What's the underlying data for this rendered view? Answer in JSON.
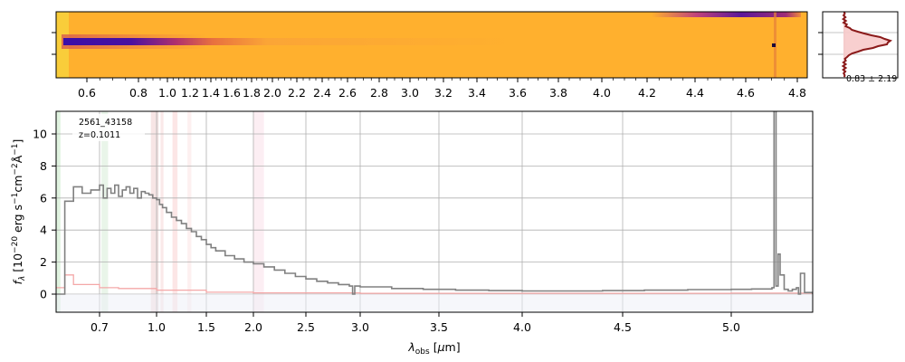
{
  "object": {
    "id_label": "2561_43158",
    "z_label": "z=0.1011"
  },
  "spectrum_2d": {
    "top_ticks": [
      "0.6",
      "0.8",
      "1.0",
      "1.2",
      "1.4",
      "1.6",
      "1.8",
      "2.0",
      "2.2",
      "2.4",
      "2.6",
      "2.8",
      "3.0",
      "3.2",
      "3.4",
      "3.6",
      "3.8",
      "4.0",
      "4.2",
      "4.4",
      "4.6",
      "4.8"
    ],
    "colormap": [
      "#ffb02e",
      "#f07a3a",
      "#b8336a",
      "#6a1796",
      "#3c0fa6"
    ]
  },
  "profile": {
    "label": "0.83 ± 2.19",
    "fill_color": "#f7caca",
    "line_color": "#8b1a1a"
  },
  "chart_data": {
    "type": "line",
    "xlabel": "λ_obs [μm]",
    "ylabel": "f_λ [10^-20 erg s^-1 cm^-2 Å^-1]",
    "xscale": "nonlinear",
    "xlim": [
      0.6,
      5.4
    ],
    "ylim": [
      -1.2,
      11.8
    ],
    "xticks": [
      "0.7",
      "1.0",
      "1.5",
      "2.0",
      "2.5",
      "3.0",
      "3.5",
      "4.0",
      "4.5",
      "5.0"
    ],
    "yticks": [
      "0",
      "2",
      "4",
      "6",
      "8",
      "10"
    ],
    "grid": true,
    "series": [
      {
        "role": "flux",
        "color": "#808080",
        "x": [
          0.6,
          0.62,
          0.64,
          0.66,
          0.68,
          0.7,
          0.72,
          0.74,
          0.76,
          0.78,
          0.8,
          0.82,
          0.84,
          0.86,
          0.88,
          0.9,
          0.92,
          0.94,
          0.96,
          0.98,
          1.0,
          1.03,
          1.06,
          1.1,
          1.15,
          1.2,
          1.25,
          1.3,
          1.35,
          1.4,
          1.45,
          1.5,
          1.55,
          1.6,
          1.7,
          1.8,
          1.9,
          2.0,
          2.1,
          2.2,
          2.3,
          2.4,
          2.5,
          2.6,
          2.7,
          2.8,
          2.9,
          2.93,
          2.95,
          3.0,
          3.2,
          3.4,
          3.6,
          3.8,
          4.0,
          4.2,
          4.4,
          4.6,
          4.8,
          5.0,
          5.1,
          5.2,
          5.21,
          5.22,
          5.23,
          5.24,
          5.26,
          5.28,
          5.3,
          5.32,
          5.33,
          5.34,
          5.36,
          5.38,
          5.4
        ],
        "y": [
          0.0,
          5.8,
          6.7,
          6.3,
          6.5,
          6.8,
          6.0,
          6.6,
          6.3,
          6.8,
          6.1,
          6.5,
          6.7,
          6.3,
          6.6,
          6.0,
          6.4,
          6.3,
          6.2,
          6.0,
          5.9,
          5.6,
          5.4,
          5.1,
          4.8,
          4.6,
          4.4,
          4.1,
          3.9,
          3.6,
          3.4,
          3.1,
          2.9,
          2.7,
          2.4,
          2.2,
          2.0,
          1.9,
          1.7,
          1.5,
          1.3,
          1.1,
          0.95,
          0.8,
          0.7,
          0.6,
          0.5,
          0.0,
          0.5,
          0.45,
          0.35,
          0.3,
          0.25,
          0.22,
          0.2,
          0.2,
          0.22,
          0.25,
          0.28,
          0.3,
          0.32,
          0.4,
          11.8,
          0.5,
          2.5,
          1.2,
          0.3,
          0.2,
          0.3,
          0.4,
          0.0,
          1.3,
          0.1,
          0.1,
          0.0
        ]
      },
      {
        "role": "error",
        "color": "#f4a8a8",
        "x": [
          0.6,
          0.62,
          0.64,
          0.7,
          0.8,
          1.0,
          1.5,
          2.0,
          3.0,
          4.0,
          5.0,
          5.4
        ],
        "y": [
          0.4,
          1.2,
          0.6,
          0.4,
          0.35,
          0.25,
          0.12,
          0.08,
          0.05,
          0.05,
          0.06,
          0.08
        ]
      }
    ],
    "shaded_bands": [
      {
        "x0": 0.6,
        "x1": 0.61,
        "color": "#d8f0d8"
      },
      {
        "x0": 0.71,
        "x1": 0.745,
        "color": "#e3f3e3"
      },
      {
        "x0": 0.97,
        "x1": 1.0,
        "color": "#f5dede"
      },
      {
        "x0": 1.0,
        "x1": 1.02,
        "color": "#ead8d8"
      },
      {
        "x0": 1.04,
        "x1": 1.07,
        "color": "#f9e3e3"
      },
      {
        "x0": 1.16,
        "x1": 1.21,
        "color": "#fbe0e0"
      },
      {
        "x0": 1.31,
        "x1": 1.35,
        "color": "#fcecec"
      },
      {
        "x0": 2.0,
        "x1": 2.1,
        "color": "#fbeaf0"
      }
    ]
  }
}
